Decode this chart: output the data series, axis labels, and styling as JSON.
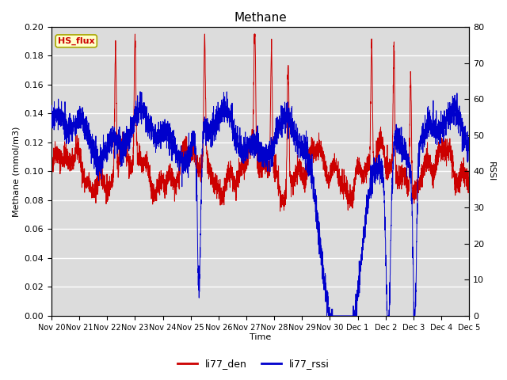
{
  "title": "Methane",
  "xlabel": "Time",
  "ylabel_left": "Methane (mmol/m3)",
  "ylabel_right": "RSSI",
  "ylim_left": [
    0.0,
    0.2
  ],
  "ylim_right": [
    0,
    80
  ],
  "yticks_left": [
    0.0,
    0.02,
    0.04,
    0.06,
    0.08,
    0.1,
    0.12,
    0.14,
    0.16,
    0.18,
    0.2
  ],
  "yticks_right": [
    0,
    10,
    20,
    30,
    40,
    50,
    60,
    70,
    80
  ],
  "color_red": "#cc0000",
  "color_blue": "#0000cc",
  "bg_color": "#dcdcdc",
  "legend_label_red": "li77_den",
  "legend_label_blue": "li77_rssi",
  "text_label": "HS_flux",
  "text_label_fgcolor": "#cc0000",
  "text_label_bgcolor": "#ffffcc",
  "xticklabels": [
    "Nov 20",
    "Nov 21",
    "Nov 22",
    "Nov 23",
    "Nov 24",
    "Nov 25",
    "Nov 26",
    "Nov 27",
    "Nov 28",
    "Nov 29",
    "Nov 30",
    "Dec 1",
    "Dec 2",
    "Dec 3",
    "Dec 4",
    "Dec 5"
  ],
  "n_points": 3600
}
